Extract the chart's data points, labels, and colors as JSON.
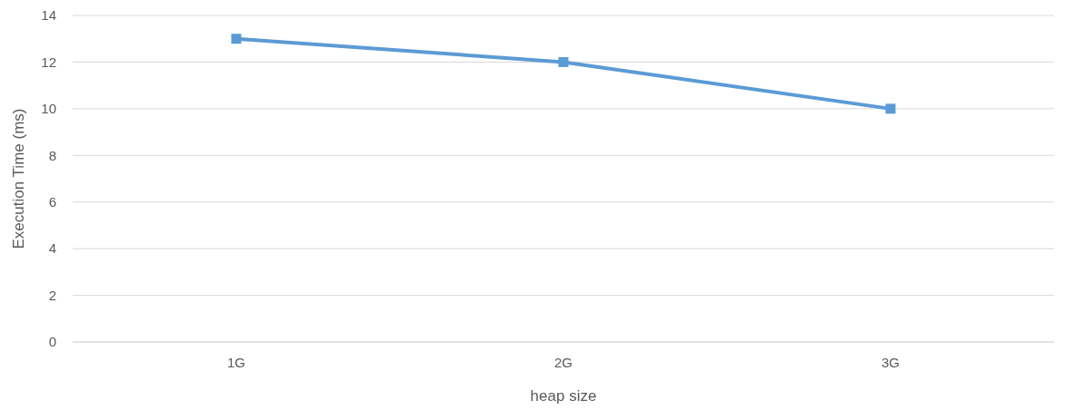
{
  "chart_data": {
    "type": "line",
    "xlabel": "heap size",
    "ylabel": "Execution Time (ms)",
    "categories": [
      "1G",
      "2G",
      "3G"
    ],
    "series": [
      {
        "color": "#5b9bd5",
        "values": [
          13,
          12,
          10
        ]
      }
    ],
    "ylim": [
      0,
      14
    ],
    "yticks": [
      0,
      2,
      4,
      6,
      8,
      10,
      12,
      14
    ],
    "grid": "y",
    "marker": "square",
    "line_style": "solid"
  }
}
